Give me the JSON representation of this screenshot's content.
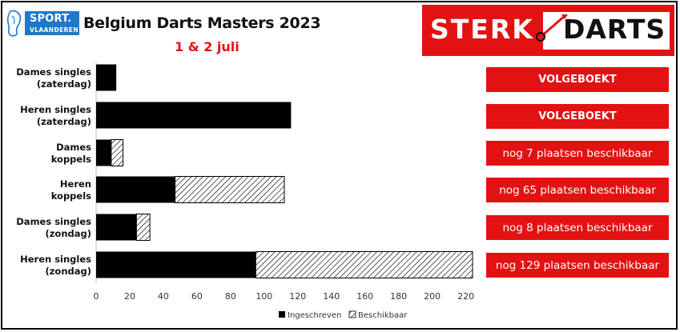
{
  "header": {
    "logo_line1": "SPORT.",
    "logo_line2": "VLAANDEREN",
    "title": "Belgium Darts Masters 2023",
    "subtitle": "1 & 2 juli",
    "brand_left": "STERK",
    "brand_right": "DARTS"
  },
  "colors": {
    "brand_red": "#e31212",
    "sport_blue": "#1f78c8",
    "bar_registered": "#000000",
    "bar_available": "hatched"
  },
  "status_labels": [
    "VOLGEBOEKT",
    "VOLGEBOEKT",
    "nog 7 plaatsen beschikbaar",
    "nog 65 plaatsen beschikbaar",
    "nog 8 plaatsen beschikbaar",
    "nog 129 plaatsen beschikbaar"
  ],
  "chart_data": {
    "type": "bar",
    "orientation": "horizontal",
    "stacked": true,
    "categories": [
      [
        "Dames singles",
        "(zaterdag)"
      ],
      [
        "Heren singles",
        "(zaterdag)"
      ],
      [
        "Dames",
        "koppels"
      ],
      [
        "Heren",
        "koppels"
      ],
      [
        "Dames singles",
        "(zondag)"
      ],
      [
        "Heren singles",
        "(zondag)"
      ]
    ],
    "series": [
      {
        "name": "Ingeschreven",
        "values": [
          12,
          116,
          9,
          47,
          24,
          95
        ]
      },
      {
        "name": "Beschikbaar",
        "values": [
          0,
          0,
          7,
          65,
          8,
          129
        ]
      }
    ],
    "xlim": [
      0,
      224
    ],
    "xticks": [
      0,
      20,
      40,
      60,
      80,
      100,
      120,
      140,
      160,
      180,
      200,
      220
    ],
    "legend_position": "bottom",
    "grid": false
  }
}
